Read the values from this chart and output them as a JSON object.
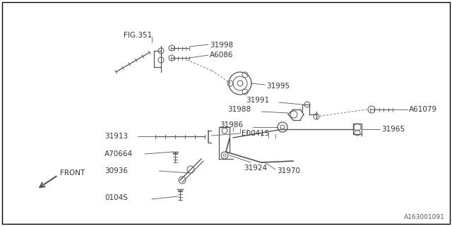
{
  "bg_color": "#ffffff",
  "line_color": "#555555",
  "text_color": "#333333",
  "footnote": "A163001091",
  "figsize": [
    6.4,
    3.2
  ],
  "dpi": 100,
  "xlim": [
    0,
    640
  ],
  "ylim": [
    0,
    320
  ]
}
